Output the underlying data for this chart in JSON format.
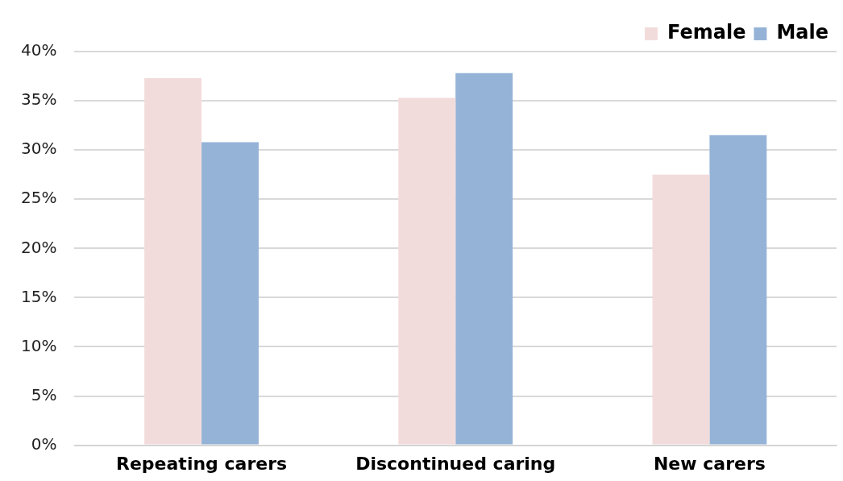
{
  "chart_data": {
    "type": "bar",
    "categories": [
      "Repeating carers",
      "Discontinued caring",
      "New carers"
    ],
    "series": [
      {
        "name": "Female",
        "color": "#f2dcdb",
        "values": [
          37.3,
          35.3,
          27.5
        ]
      },
      {
        "name": "Male",
        "color": "#95b3d7",
        "values": [
          30.8,
          37.8,
          31.5
        ]
      }
    ],
    "ylim": [
      0,
      40
    ],
    "yticks": [
      {
        "value": 0,
        "label": "0%"
      },
      {
        "value": 5,
        "label": "5%"
      },
      {
        "value": 10,
        "label": "10%"
      },
      {
        "value": 15,
        "label": "15%"
      },
      {
        "value": 20,
        "label": "20%"
      },
      {
        "value": 25,
        "label": "25%"
      },
      {
        "value": 30,
        "label": "30%"
      },
      {
        "value": 35,
        "label": "35%"
      },
      {
        "value": 40,
        "label": "40%"
      }
    ],
    "grid": "y",
    "legend": "top right"
  }
}
